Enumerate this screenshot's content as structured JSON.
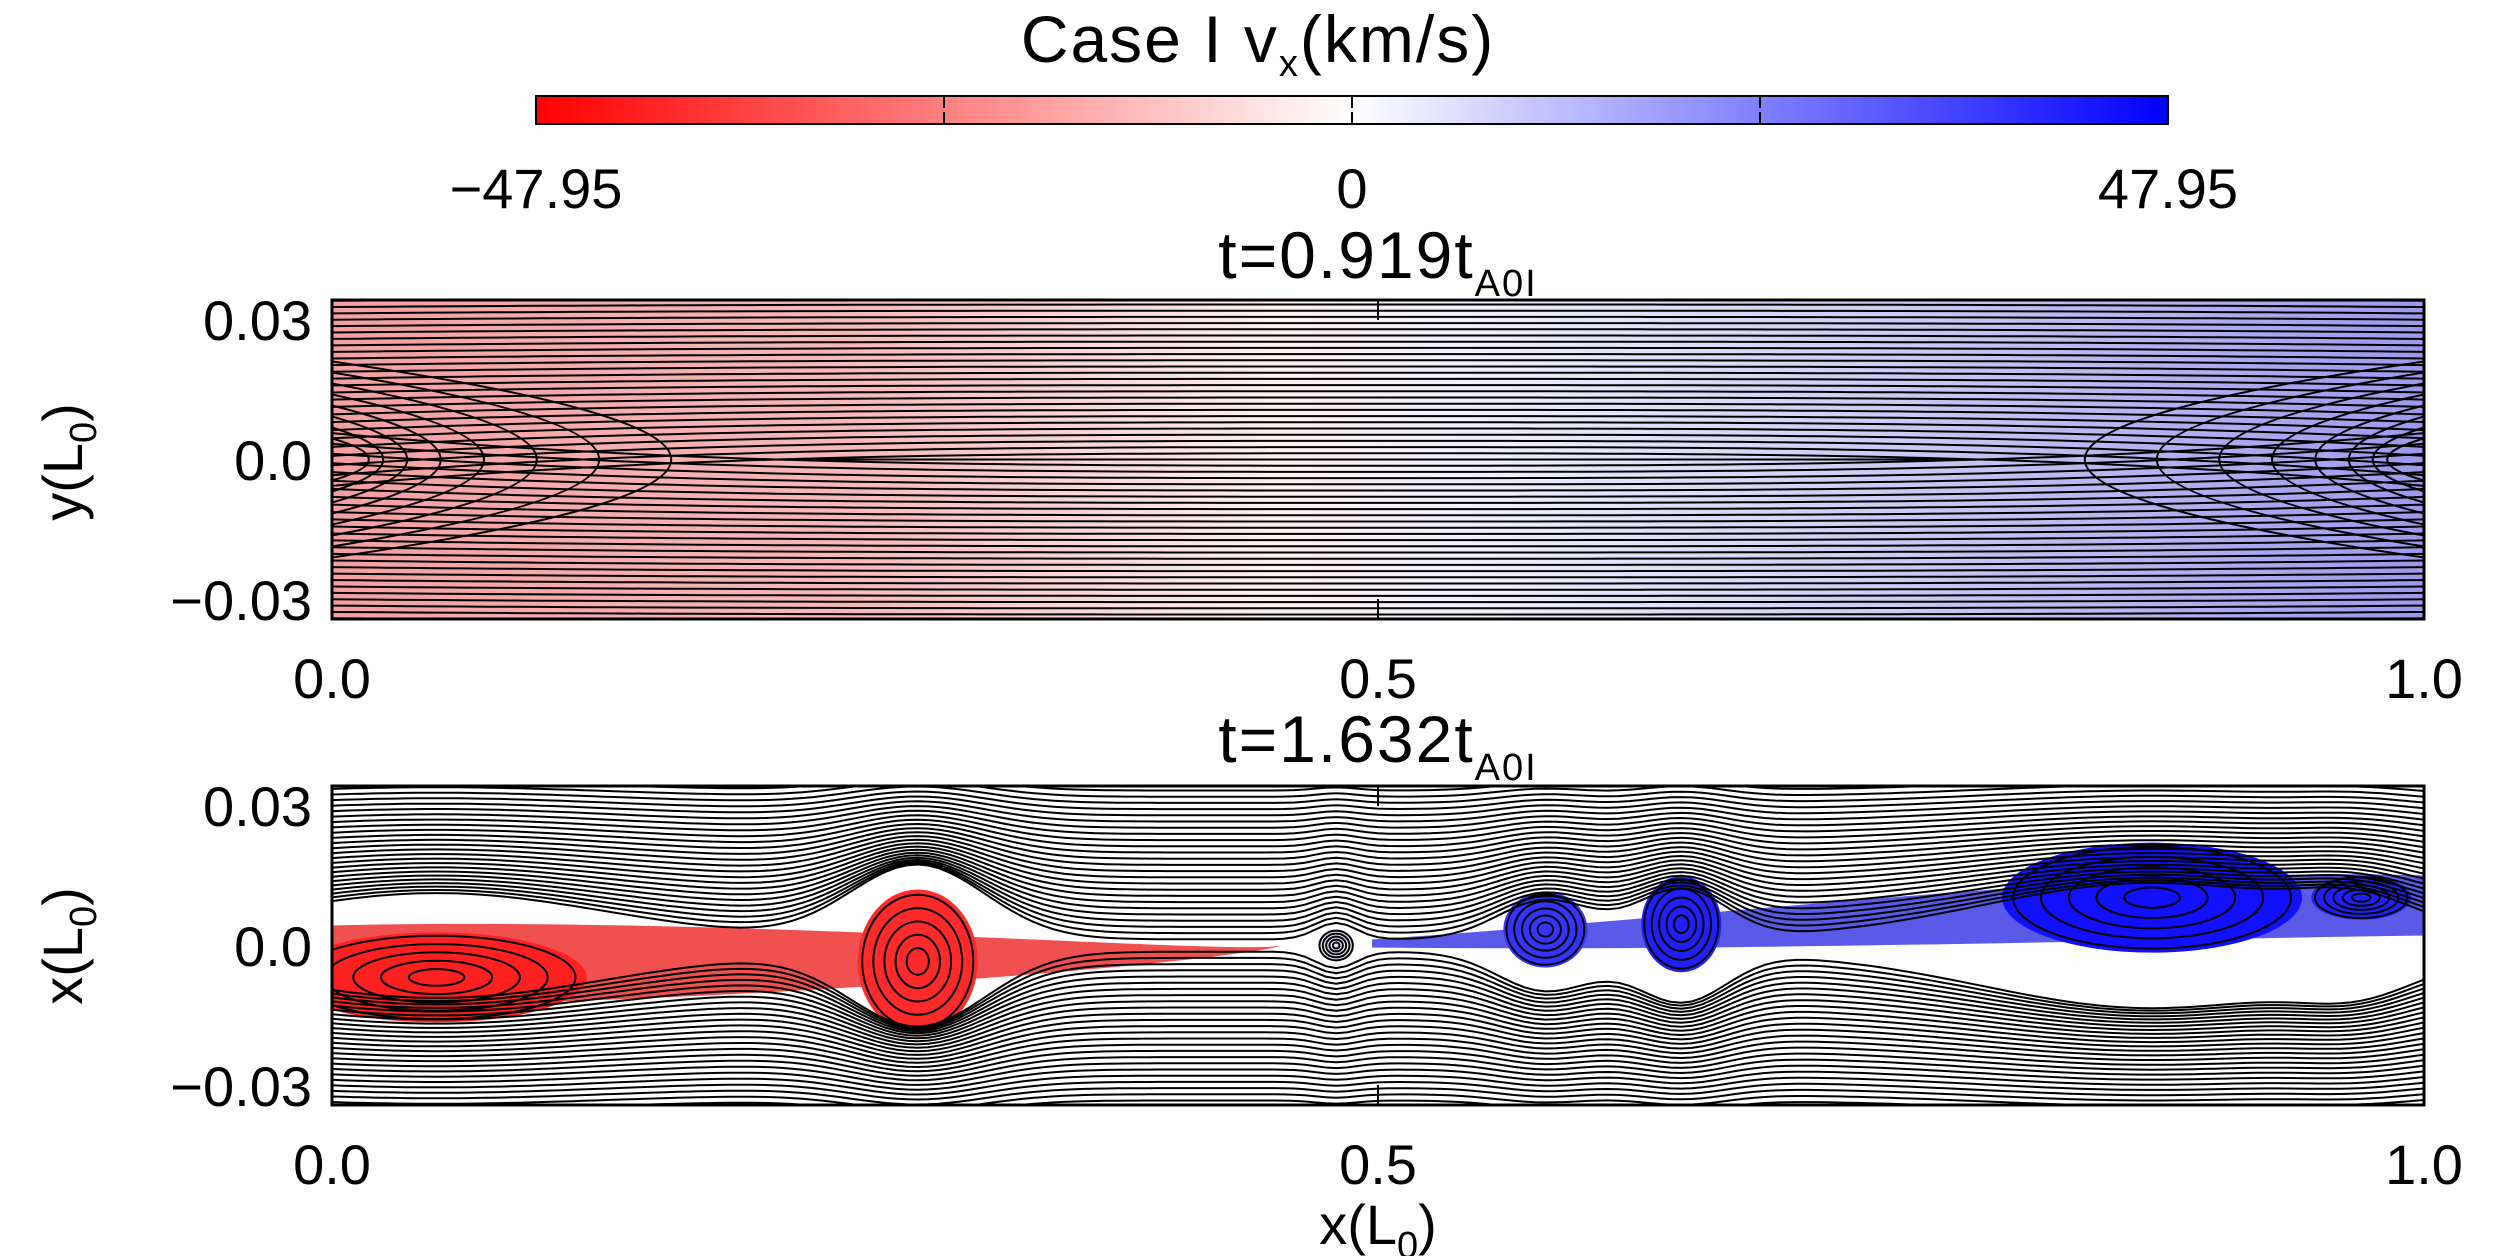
{
  "colorbar": {
    "title_main": "Case I v",
    "title_sub": "x",
    "title_unit": "(km/s)",
    "min_label": "−47.95",
    "mid_label": "0",
    "max_label": "47.95",
    "range": [
      -47.95,
      47.95
    ],
    "low_color": "#ff0000",
    "mid_color": "#ffffff",
    "high_color": "#0000ff"
  },
  "chart_data": [
    {
      "type": "heatmap",
      "title_main": "t=0.919t",
      "title_sub": "A0I",
      "xlabel": "",
      "ylabel_main": "y(L",
      "ylabel_sub": "0",
      "ylabel_end": ")",
      "xlim": [
        0.0,
        1.0
      ],
      "ylim": [
        -0.03,
        0.03
      ],
      "xticks": [
        "0.0",
        "0.5",
        "1.0"
      ],
      "yticks": [
        "0.03",
        "0.0",
        "−0.03"
      ],
      "field": "v_x",
      "overlay": "magnetic field lines (black contours)",
      "regions": [
        {
          "x": 0.15,
          "y": 0.0,
          "value": -22
        },
        {
          "x": 0.5,
          "y": 0.0,
          "value": 0
        },
        {
          "x": 0.85,
          "y": 0.0,
          "value": 22
        }
      ]
    },
    {
      "type": "heatmap",
      "title_main": "t=1.632t",
      "title_sub": "A0I",
      "xlabel_main": "x(L",
      "xlabel_sub": "0",
      "xlabel_end": ")",
      "ylabel_main": "x(L",
      "ylabel_sub": "0",
      "ylabel_end": ")",
      "xlim": [
        0.0,
        1.0
      ],
      "ylim": [
        -0.03,
        0.03
      ],
      "xticks": [
        "0.0",
        "0.5",
        "1.0"
      ],
      "yticks": [
        "0.03",
        "0.0",
        "−0.03"
      ],
      "field": "v_x",
      "overlay": "magnetic field lines with plasmoids (black contours)",
      "plasmoids": [
        {
          "x": 0.05,
          "y": -0.006,
          "value": -42
        },
        {
          "x": 0.28,
          "y": -0.003,
          "value": -40
        },
        {
          "x": 0.48,
          "y": 0.0,
          "value": 5
        },
        {
          "x": 0.58,
          "y": 0.003,
          "value": 38
        },
        {
          "x": 0.645,
          "y": 0.004,
          "value": 42
        },
        {
          "x": 0.87,
          "y": 0.009,
          "value": 45
        },
        {
          "x": 0.97,
          "y": 0.009,
          "value": 42
        }
      ]
    }
  ]
}
